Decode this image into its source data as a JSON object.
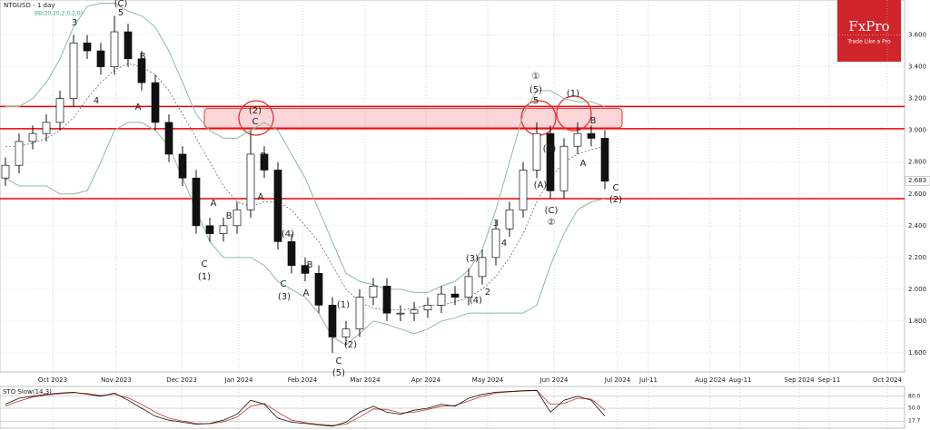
{
  "chart_data": {
    "type": "candlestick",
    "title": "NTGUSD - 1 day",
    "indicator_label": "BB(20,20,2,0,2,0)",
    "logo": "FxPro",
    "logo_tagline": "Trade Like a Pro",
    "open": [
      2.7,
      2.78,
      2.93,
      2.98,
      3.05,
      3.2,
      3.55,
      3.5,
      3.4,
      3.62,
      3.45,
      3.3,
      3.05,
      2.85,
      2.7,
      2.4,
      2.35,
      2.4,
      2.5,
      2.85,
      2.75,
      2.3,
      2.15,
      2.1,
      1.9,
      1.7,
      1.75,
      1.95,
      2.02,
      1.85,
      1.85,
      1.87,
      1.9,
      1.97,
      1.95,
      2.08,
      2.2,
      2.38,
      2.5,
      2.75,
      2.98,
      2.62,
      2.9,
      2.98,
      2.95
    ],
    "high": [
      2.83,
      2.98,
      3.03,
      3.1,
      3.25,
      3.6,
      3.6,
      3.55,
      3.72,
      3.67,
      3.5,
      3.35,
      3.1,
      2.9,
      2.75,
      2.45,
      2.45,
      2.55,
      3.0,
      2.9,
      2.8,
      2.35,
      2.2,
      2.15,
      1.95,
      1.8,
      2.0,
      2.07,
      2.07,
      1.9,
      1.92,
      1.95,
      2.02,
      2.02,
      2.13,
      2.25,
      2.43,
      2.55,
      2.8,
      3.05,
      3.03,
      2.95,
      3.05,
      3.03,
      3.0
    ],
    "low": [
      2.65,
      2.73,
      2.88,
      2.93,
      3.0,
      3.15,
      3.45,
      3.35,
      3.35,
      3.4,
      3.25,
      3.0,
      2.8,
      2.65,
      2.35,
      2.3,
      2.3,
      2.35,
      2.45,
      2.7,
      2.25,
      2.1,
      2.05,
      1.85,
      1.6,
      1.65,
      1.7,
      1.9,
      1.8,
      1.8,
      1.8,
      1.82,
      1.85,
      1.9,
      1.9,
      2.03,
      2.15,
      2.33,
      2.45,
      2.7,
      2.57,
      2.57,
      2.85,
      2.9,
      2.63
    ],
    "close": [
      2.78,
      2.93,
      2.98,
      3.05,
      3.2,
      3.55,
      3.5,
      3.4,
      3.62,
      3.45,
      3.3,
      3.05,
      2.85,
      2.7,
      2.4,
      2.35,
      2.4,
      2.5,
      2.85,
      2.75,
      2.3,
      2.15,
      2.1,
      1.9,
      1.7,
      1.75,
      1.95,
      2.02,
      1.85,
      1.85,
      1.87,
      1.9,
      1.97,
      1.95,
      2.08,
      2.2,
      2.38,
      2.5,
      2.75,
      2.98,
      2.62,
      2.9,
      2.98,
      2.95,
      2.68
    ],
    "bb_upper": [
      3.15,
      3.15,
      3.2,
      3.3,
      3.45,
      3.65,
      3.78,
      3.8,
      3.8,
      3.75,
      3.72,
      3.65,
      3.5,
      3.3,
      3.1,
      3.0,
      2.95,
      2.95,
      3.0,
      3.05,
      3.0,
      2.85,
      2.7,
      2.5,
      2.3,
      2.1,
      2.05,
      2.03,
      2.0,
      2.0,
      1.98,
      1.98,
      2.02,
      2.05,
      2.12,
      2.25,
      2.5,
      2.8,
      3.1,
      3.25,
      3.25,
      3.2,
      3.18,
      3.18,
      3.15
    ],
    "bb_mid": [
      2.9,
      2.9,
      2.92,
      2.95,
      3.0,
      3.08,
      3.2,
      3.3,
      3.38,
      3.42,
      3.4,
      3.35,
      3.25,
      3.1,
      2.95,
      2.8,
      2.65,
      2.55,
      2.52,
      2.55,
      2.55,
      2.5,
      2.4,
      2.3,
      2.15,
      2.0,
      1.92,
      1.88,
      1.87,
      1.87,
      1.88,
      1.9,
      1.9,
      1.92,
      1.95,
      2.0,
      2.08,
      2.2,
      2.35,
      2.55,
      2.7,
      2.8,
      2.85,
      2.88,
      2.9
    ],
    "bb_lower": [
      2.7,
      2.65,
      2.65,
      2.65,
      2.6,
      2.6,
      2.62,
      2.8,
      3.0,
      3.05,
      3.05,
      3.0,
      2.9,
      2.7,
      2.5,
      2.3,
      2.2,
      2.2,
      2.2,
      2.15,
      2.05,
      2.0,
      1.95,
      1.85,
      1.7,
      1.65,
      1.72,
      1.8,
      1.78,
      1.75,
      1.72,
      1.75,
      1.8,
      1.82,
      1.85,
      1.85,
      1.85,
      1.85,
      1.85,
      1.9,
      2.15,
      2.35,
      2.5,
      2.55,
      2.57
    ],
    "ylim": [
      1.48,
      3.82
    ],
    "yticks": [
      {
        "value": 3.6,
        "label": "3.600"
      },
      {
        "value": 3.4,
        "label": "3.400"
      },
      {
        "value": 3.2,
        "label": "3.200"
      },
      {
        "value": 3.0,
        "label": "3.000"
      },
      {
        "value": 2.8,
        "label": "2.800"
      },
      {
        "value": 2.6,
        "label": "2.600"
      },
      {
        "value": 2.4,
        "label": "2.400"
      },
      {
        "value": 2.2,
        "label": "2.200"
      },
      {
        "value": 2.0,
        "label": "2.000"
      },
      {
        "value": 1.8,
        "label": "1.800"
      },
      {
        "value": 1.6,
        "label": "1.600"
      }
    ],
    "last_price": {
      "value": 2.683,
      "label": "2.683"
    },
    "levels": [
      3.15,
      3.01,
      2.57
    ],
    "xticks": [
      "Oct 2023",
      "Nov 2023",
      "Dec 2023",
      "Jan 2024",
      "Feb 2024",
      "Mar 2024",
      "Apr 2024",
      "May 2024",
      "Jun 2024",
      "Jul 2024",
      "Jul-11",
      "Aug 2024",
      "Aug-11",
      "Sep 2024",
      "Sep-11",
      "Oct 2024"
    ],
    "wave_labels": [
      "(C)",
      "5",
      "3",
      "4",
      "B",
      "A",
      "A",
      "B",
      "C",
      "(1)",
      "(2)",
      "C",
      "B",
      "A",
      "(4)",
      "B",
      "A",
      "C",
      "(3)",
      "(1)",
      "(2)",
      "C",
      "(5)",
      "(3)",
      "(4)",
      "2",
      "3",
      "4",
      "①",
      "(5)",
      "5",
      "(B)",
      "(A)",
      "(C)",
      "②",
      "(1)",
      "B",
      "A",
      "C",
      "(2)"
    ],
    "sto": {
      "title": "STO Slow(14,3)",
      "k": [
        60,
        75,
        80,
        85,
        88,
        90,
        85,
        80,
        88,
        70,
        50,
        30,
        20,
        15,
        10,
        12,
        20,
        35,
        70,
        60,
        25,
        15,
        12,
        8,
        5,
        15,
        40,
        55,
        40,
        35,
        45,
        50,
        60,
        55,
        75,
        85,
        90,
        92,
        94,
        95,
        40,
        70,
        80,
        70,
        30
      ],
      "d": [
        55,
        68,
        78,
        83,
        86,
        89,
        87,
        82,
        85,
        76,
        60,
        40,
        25,
        18,
        12,
        11,
        16,
        28,
        55,
        62,
        40,
        20,
        14,
        10,
        7,
        10,
        28,
        48,
        47,
        38,
        40,
        47,
        55,
        57,
        68,
        80,
        88,
        91,
        93,
        94,
        60,
        62,
        75,
        73,
        45
      ],
      "ylim": [
        0,
        100
      ],
      "yticks": [
        {
          "value": 80,
          "label": "80.0"
        },
        {
          "value": 50,
          "label": "50.0"
        },
        {
          "value": 17.7,
          "label": "17.7"
        }
      ]
    }
  }
}
